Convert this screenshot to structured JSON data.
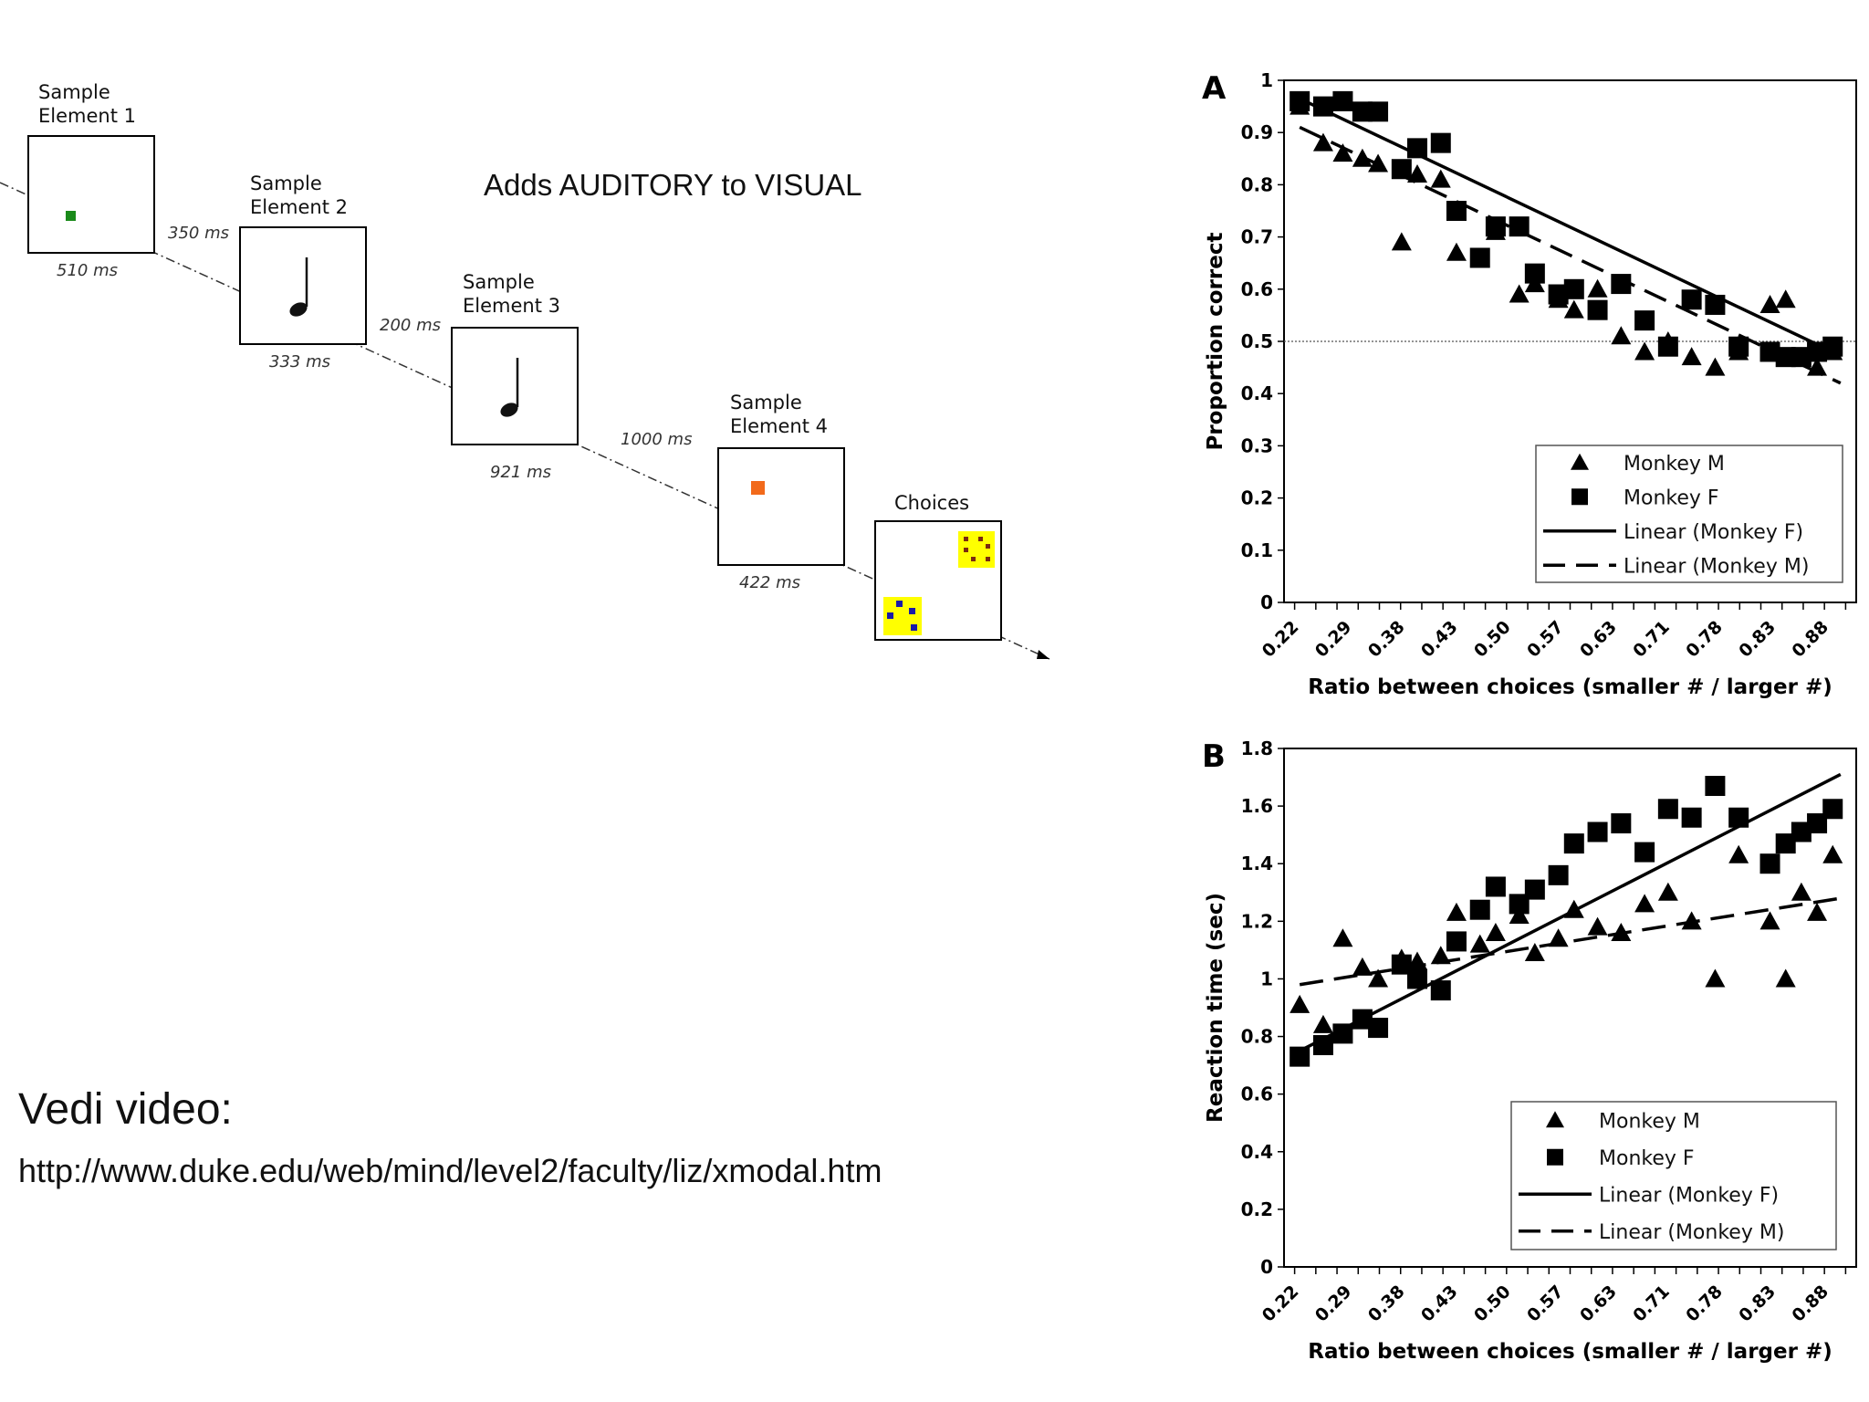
{
  "note": "Adds AUDITORY to VISUAL",
  "video": {
    "title": "Vedi video:",
    "url": "http://www.duke.edu/web/mind/level2/faculty/liz/xmodal.htm"
  },
  "sequence": {
    "elements": [
      {
        "label": "Sample\nElement 1",
        "duration": "510 ms",
        "content": "green-square"
      },
      {
        "label": "Sample\nElement 2",
        "duration": "333 ms",
        "content": "music-note"
      },
      {
        "label": "Sample\nElement 3",
        "duration": "921 ms",
        "content": "music-note"
      },
      {
        "label": "Sample\nElement 4",
        "duration": "422 ms",
        "content": "orange-square"
      }
    ],
    "intervals": [
      "350 ms",
      "200 ms",
      "1000 ms"
    ],
    "choices_label": "Choices",
    "colors": {
      "green": "#1a8a1a",
      "orange": "#f26a1b",
      "yellow": "#ffff00",
      "blue": "#1a1aa8",
      "brown": "#7a2a10"
    }
  },
  "chart_data": [
    {
      "panel": "A",
      "type": "scatter",
      "xlabel": "Ratio between choices (smaller # / larger #)",
      "ylabel": "Proportion correct",
      "x_tick_labels": [
        "0.22",
        "0.29",
        "0.38",
        "0.43",
        "0.50",
        "0.57",
        "0.63",
        "0.71",
        "0.78",
        "0.83",
        "0.88"
      ],
      "xlim": [
        0.2,
        0.93
      ],
      "ylim": [
        0,
        1
      ],
      "y_ticks": [
        "0",
        "0.1",
        "0.2",
        "0.3",
        "0.4",
        "0.5",
        "0.6",
        "0.7",
        "0.8",
        "0.9",
        "1"
      ],
      "reference_line": 0.5,
      "series": [
        {
          "name": "Monkey M",
          "marker": "triangle",
          "x": [
            0.22,
            0.25,
            0.275,
            0.3,
            0.32,
            0.35,
            0.37,
            0.4,
            0.42,
            0.45,
            0.47,
            0.5,
            0.52,
            0.55,
            0.57,
            0.6,
            0.63,
            0.66,
            0.69,
            0.72,
            0.75,
            0.78,
            0.82,
            0.84,
            0.86,
            0.88,
            0.9
          ],
          "y": [
            0.95,
            0.88,
            0.86,
            0.85,
            0.84,
            0.69,
            0.82,
            0.81,
            0.67,
            0.66,
            0.71,
            0.59,
            0.61,
            0.58,
            0.56,
            0.6,
            0.51,
            0.48,
            0.5,
            0.47,
            0.45,
            0.48,
            0.57,
            0.58,
            0.47,
            0.45,
            0.48
          ]
        },
        {
          "name": "Monkey F",
          "marker": "square",
          "x": [
            0.22,
            0.25,
            0.275,
            0.3,
            0.32,
            0.35,
            0.37,
            0.4,
            0.42,
            0.45,
            0.47,
            0.5,
            0.52,
            0.55,
            0.57,
            0.6,
            0.63,
            0.66,
            0.69,
            0.72,
            0.75,
            0.78,
            0.82,
            0.84,
            0.86,
            0.88,
            0.9
          ],
          "y": [
            0.96,
            0.95,
            0.96,
            0.94,
            0.94,
            0.83,
            0.87,
            0.88,
            0.75,
            0.66,
            0.72,
            0.72,
            0.63,
            0.59,
            0.6,
            0.56,
            0.61,
            0.54,
            0.49,
            0.58,
            0.57,
            0.49,
            0.48,
            0.47,
            0.47,
            0.48,
            0.49
          ]
        },
        {
          "name": "Linear (Monkey F)",
          "style": "solid",
          "x": [
            0.22,
            0.9
          ],
          "y": [
            0.965,
            0.48
          ]
        },
        {
          "name": "Linear (Monkey M)",
          "style": "dashed",
          "x": [
            0.22,
            0.91
          ],
          "y": [
            0.91,
            0.42
          ]
        }
      ],
      "legend": [
        "Monkey M",
        "Monkey F",
        "Linear (Monkey F)",
        "Linear (Monkey M)"
      ]
    },
    {
      "panel": "B",
      "type": "scatter",
      "xlabel": "Ratio between choices (smaller # / larger #)",
      "ylabel": "Reaction time (sec)",
      "x_tick_labels": [
        "0.22",
        "0.29",
        "0.38",
        "0.43",
        "0.50",
        "0.57",
        "0.63",
        "0.71",
        "0.78",
        "0.83",
        "0.88"
      ],
      "xlim": [
        0.2,
        0.93
      ],
      "ylim": [
        0,
        1.8
      ],
      "y_ticks": [
        "0",
        "0.2",
        "0.4",
        "0.6",
        "0.8",
        "1",
        "1.2",
        "1.4",
        "1.6",
        "1.8"
      ],
      "series": [
        {
          "name": "Monkey M",
          "marker": "triangle",
          "x": [
            0.22,
            0.25,
            0.275,
            0.3,
            0.32,
            0.35,
            0.37,
            0.4,
            0.42,
            0.45,
            0.47,
            0.5,
            0.52,
            0.55,
            0.57,
            0.6,
            0.63,
            0.66,
            0.69,
            0.72,
            0.75,
            0.78,
            0.82,
            0.84,
            0.86,
            0.88,
            0.9
          ],
          "y": [
            0.91,
            0.84,
            1.14,
            1.04,
            1.0,
            1.07,
            1.06,
            1.08,
            1.23,
            1.12,
            1.16,
            1.22,
            1.09,
            1.14,
            1.24,
            1.18,
            1.16,
            1.26,
            1.3,
            1.2,
            1.0,
            1.43,
            1.2,
            1.0,
            1.3,
            1.23,
            1.43
          ]
        },
        {
          "name": "Monkey F",
          "marker": "square",
          "x": [
            0.22,
            0.25,
            0.275,
            0.3,
            0.32,
            0.35,
            0.37,
            0.4,
            0.42,
            0.45,
            0.47,
            0.5,
            0.52,
            0.55,
            0.57,
            0.6,
            0.63,
            0.66,
            0.69,
            0.72,
            0.75,
            0.78,
            0.82,
            0.84,
            0.86,
            0.88,
            0.9
          ],
          "y": [
            0.73,
            0.77,
            0.81,
            0.86,
            0.83,
            1.05,
            1.0,
            0.96,
            1.13,
            1.24,
            1.32,
            1.26,
            1.31,
            1.36,
            1.47,
            1.51,
            1.54,
            1.44,
            1.59,
            1.56,
            1.67,
            1.56,
            1.4,
            1.47,
            1.51,
            1.54,
            1.59
          ]
        },
        {
          "name": "Linear (Monkey F)",
          "style": "solid",
          "x": [
            0.22,
            0.91
          ],
          "y": [
            0.75,
            1.71
          ]
        },
        {
          "name": "Linear (Monkey M)",
          "style": "dashed",
          "x": [
            0.22,
            0.91
          ],
          "y": [
            0.98,
            1.28
          ]
        }
      ],
      "legend": [
        "Monkey M",
        "Monkey F",
        "Linear (Monkey F)",
        "Linear (Monkey M)"
      ]
    }
  ]
}
